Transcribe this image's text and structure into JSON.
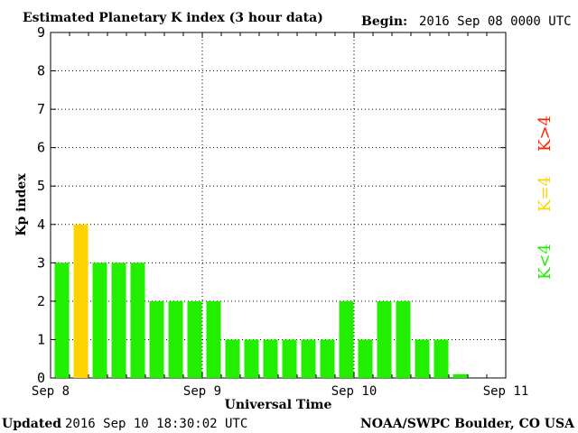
{
  "header": {
    "title": "Estimated Planetary K index (3 hour data)",
    "begin_label": "Begin:",
    "begin_value": "2016 Sep 08 0000 UTC"
  },
  "footer": {
    "updated_label": "Updated",
    "updated_value": "2016 Sep 10 18:30:02 UTC",
    "source": "NOAA/SWPC Boulder, CO USA"
  },
  "chart_data": {
    "type": "bar",
    "title": "Estimated Planetary K index (3 hour data)",
    "xlabel": "Universal Time",
    "ylabel": "Kp index",
    "ylim": [
      0,
      9
    ],
    "y_ticks": [
      "0",
      "1",
      "2",
      "3",
      "4",
      "5",
      "6",
      "7",
      "8",
      "9"
    ],
    "x_ticks": [
      "Sep 8",
      "Sep 9",
      "Sep 10",
      "Sep 11"
    ],
    "slots_per_day": 8,
    "grid": true,
    "values": [
      3,
      4,
      3,
      3,
      3,
      2,
      2,
      2,
      2,
      1,
      1,
      1,
      1,
      1,
      1,
      2,
      1,
      2,
      2,
      1,
      1,
      0.1
    ],
    "colors": {
      "low": "#22ee00",
      "storm_threshold": "#ffd300",
      "high": "#ff2200",
      "grid": "#000000"
    },
    "legend": [
      {
        "label": "K<4",
        "color": "#22ee00"
      },
      {
        "label": "K=4",
        "color": "#ffd300"
      },
      {
        "label": "K>4",
        "color": "#ff2200"
      }
    ]
  }
}
